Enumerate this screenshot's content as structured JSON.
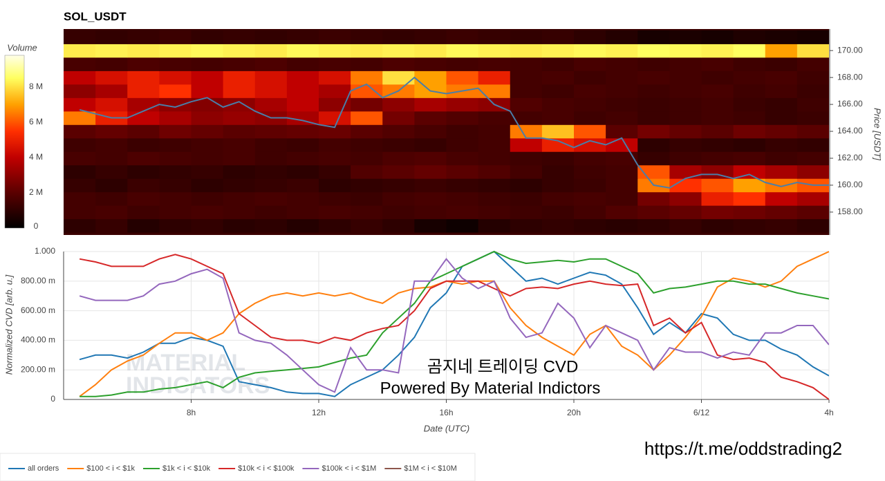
{
  "chart_data": [
    {
      "type": "heatmap",
      "title": "SOL_USDT",
      "colorbar": {
        "title": "Volume",
        "zlim": [
          0,
          9.8
        ],
        "ticks": [
          0,
          {
            "value": 2,
            "label": "2 M"
          },
          {
            "value": 4,
            "label": "4 M"
          },
          {
            "value": 6,
            "label": "6 M"
          },
          {
            "value": 8,
            "label": "8 M"
          }
        ]
      },
      "colorscale": [
        [
          0,
          "#000000"
        ],
        [
          2,
          "#5a0000"
        ],
        [
          4,
          "#c00000"
        ],
        [
          5.5,
          "#ff3000"
        ],
        [
          7,
          "#ffa000"
        ],
        [
          8.5,
          "#ffff60"
        ],
        [
          9.8,
          "#ffffe8"
        ]
      ],
      "time_bins": [
        4,
        5,
        6,
        7,
        8,
        9,
        10,
        11,
        12,
        13,
        14,
        15,
        16,
        17,
        18,
        19,
        20,
        21,
        22,
        23,
        24,
        25,
        26,
        27,
        28
      ],
      "price_bins": [
        156.5,
        157.5,
        158.5,
        159.5,
        160.5,
        161.5,
        162.5,
        163.5,
        164.5,
        165.5,
        166.5,
        167.5,
        168.5,
        169.5,
        170.5,
        171.5
      ],
      "z": [
        [
          1,
          1.2,
          0.8,
          1,
          1.1,
          0.9,
          1,
          0.8,
          1,
          1.2,
          1,
          0.5,
          0.3,
          0.8,
          1,
          1.1,
          1,
          0.9,
          1,
          1.2,
          1,
          1.1,
          1.2,
          1
        ],
        [
          1.5,
          1.6,
          1.4,
          1.5,
          1.6,
          1.5,
          1.4,
          1.5,
          1.6,
          1.5,
          1.4,
          1.5,
          1.6,
          1.5,
          1.4,
          1.3,
          1.5,
          1.8,
          2,
          2.2,
          2.5,
          2.4,
          2.2,
          2
        ],
        [
          1.5,
          1.4,
          1.6,
          1.5,
          1.4,
          1.5,
          1.6,
          1.5,
          1.4,
          1.3,
          1.5,
          1.6,
          1.5,
          1.4,
          1.3,
          1.5,
          1.6,
          1.5,
          2.5,
          3,
          5,
          5.5,
          4,
          3.5
        ],
        [
          1.2,
          1,
          1.3,
          1.2,
          1,
          1.1,
          1.2,
          1.3,
          1,
          1.1,
          1.2,
          1.3,
          1.2,
          1.1,
          1,
          1.2,
          1.3,
          1.5,
          6.5,
          5.5,
          6,
          7,
          6.5,
          6
        ],
        [
          1,
          1.2,
          1,
          1.1,
          1.2,
          1,
          1.1,
          1,
          1.2,
          1.8,
          2,
          2.2,
          2,
          1.8,
          1.5,
          1.2,
          1.4,
          1.5,
          6,
          3.5,
          3,
          4,
          3.5,
          3
        ],
        [
          1.6,
          1.5,
          1.7,
          1.6,
          1.5,
          1.6,
          1.4,
          1.5,
          1.6,
          1.5,
          1.7,
          1.8,
          1.6,
          1.5,
          1.4,
          1.3,
          1.5,
          1.6,
          1.2,
          1.4,
          1.5,
          1.6,
          1.4,
          1.5
        ],
        [
          1.4,
          1.5,
          1.3,
          1.4,
          1.5,
          1.6,
          1.4,
          1.3,
          1.5,
          1.4,
          1.3,
          1.2,
          1.4,
          1.5,
          4,
          5,
          4.5,
          4,
          1,
          1.2,
          1.1,
          1,
          1.2,
          1.1
        ],
        [
          2,
          2.2,
          2,
          2.4,
          2.2,
          2,
          2.1,
          2.2,
          2.3,
          2,
          1.8,
          1.6,
          1.4,
          1.5,
          6.5,
          7.5,
          6,
          2,
          2.5,
          2.2,
          2,
          2.4,
          2.2,
          2
        ],
        [
          6.5,
          5,
          4,
          3.5,
          3,
          3.2,
          3,
          3.5,
          4.5,
          6,
          2.5,
          2,
          1.8,
          1.6,
          1.5,
          1.6,
          1.4,
          1.5,
          1.3,
          1.4,
          1.5,
          1.4,
          1.2,
          1.3
        ],
        [
          4,
          4.5,
          3.5,
          3,
          2.8,
          3,
          3.5,
          4,
          3,
          2.5,
          3,
          3.5,
          3.2,
          3,
          1.8,
          1.6,
          1.5,
          1.4,
          1.3,
          1.4,
          1.5,
          1.3,
          1.2,
          1.4
        ],
        [
          3,
          3.5,
          5,
          5.5,
          4,
          5,
          4.5,
          4,
          3.5,
          6,
          6.5,
          7,
          6.5,
          6.5,
          1.5,
          1.4,
          1.6,
          1.5,
          1.4,
          1.5,
          1.6,
          1.4,
          1.5,
          1.3
        ],
        [
          4,
          4.5,
          5,
          4.5,
          4,
          5,
          4.5,
          4,
          4.5,
          6.5,
          8,
          7,
          6,
          5,
          1.5,
          1.6,
          1.4,
          1.5,
          1.6,
          1.5,
          1.4,
          1.5,
          1.6,
          1.4
        ],
        [
          1.6,
          1.5,
          1.7,
          1.6,
          1.5,
          1.6,
          1.7,
          1.5,
          1.6,
          1.5,
          1.7,
          1.6,
          1.5,
          1.6,
          1.5,
          1.4,
          1.6,
          1.5,
          1.4,
          1.5,
          1.6,
          1.4,
          1.3,
          1.5
        ],
        [
          8.2,
          8.3,
          8.2,
          8.3,
          8.4,
          8.3,
          8.2,
          8.4,
          8.3,
          8.2,
          8.3,
          8.2,
          8.4,
          8.3,
          8.2,
          8.3,
          8.4,
          8.3,
          8.5,
          8.4,
          8.3,
          8.5,
          7,
          8
        ],
        [
          1.2,
          1.1,
          1.2,
          1.3,
          1.1,
          1.2,
          1.1,
          1.2,
          1.3,
          1.2,
          1.1,
          1.2,
          1.3,
          1.2,
          1.1,
          1.2,
          1.0,
          0.8,
          0.5,
          0.6,
          0.5,
          0.7,
          0.6,
          0.5
        ]
      ],
      "x": [
        4.5,
        5,
        5.5,
        6,
        6.5,
        7,
        7.5,
        8,
        8.5,
        9,
        9.5,
        10,
        10.5,
        11,
        11.5,
        12,
        12.5,
        13,
        13.5,
        14,
        14.5,
        15,
        15.5,
        16,
        16.5,
        17,
        17.5,
        18,
        18.5,
        19,
        19.5,
        20,
        20.5,
        21,
        21.5,
        22,
        22.5,
        23,
        23.5,
        24,
        24.5,
        25,
        25.5,
        26,
        26.5,
        27,
        27.5,
        28
      ],
      "price": {
        "color": "#4a7ea8",
        "values": [
          165.6,
          165.3,
          165.0,
          165.0,
          165.5,
          166.0,
          165.8,
          166.2,
          166.5,
          165.8,
          166.2,
          165.5,
          165.0,
          165.0,
          164.8,
          164.5,
          164.3,
          167.0,
          167.5,
          166.5,
          167.0,
          168.0,
          167.0,
          166.8,
          167.0,
          167.2,
          166.0,
          165.5,
          163.5,
          163.5,
          163.3,
          162.8,
          163.3,
          163.0,
          163.5,
          161.5,
          160.0,
          159.8,
          160.5,
          160.8,
          160.8,
          160.5,
          160.8,
          160.2,
          159.9,
          160.2,
          160.0,
          160.0
        ]
      },
      "xlim": [
        4,
        28
      ],
      "ylim": [
        156.3,
        171.6
      ],
      "y_label": "Price [USDT]",
      "yticks": [
        {
          "value": 158,
          "label": "158.00"
        },
        {
          "value": 160,
          "label": "160.00"
        },
        {
          "value": 162,
          "label": "162.00"
        },
        {
          "value": 164,
          "label": "164.00"
        },
        {
          "value": 166,
          "label": "166.00"
        },
        {
          "value": 168,
          "label": "168.00"
        },
        {
          "value": 170,
          "label": "170.00"
        }
      ]
    },
    {
      "type": "line",
      "x": [
        4.5,
        5,
        5.5,
        6,
        6.5,
        7,
        7.5,
        8,
        8.5,
        9,
        9.5,
        10,
        10.5,
        11,
        11.5,
        12,
        12.5,
        13,
        13.5,
        14,
        14.5,
        15,
        15.5,
        16,
        16.5,
        17,
        17.5,
        18,
        18.5,
        19,
        19.5,
        20,
        20.5,
        21,
        21.5,
        22,
        22.5,
        23,
        23.5,
        24,
        24.5,
        25,
        25.5,
        26,
        26.5,
        27,
        27.5,
        28
      ],
      "xlim": [
        4,
        28
      ],
      "ylim": [
        0,
        1
      ],
      "xticks": [
        {
          "value": 8,
          "label": "8h"
        },
        {
          "value": 12,
          "label": "12h"
        },
        {
          "value": 16,
          "label": "16h"
        },
        {
          "value": 20,
          "label": "20h"
        },
        {
          "value": 24,
          "label": "6/12"
        },
        {
          "value": 28,
          "label": "4h"
        }
      ],
      "yticks": [
        0,
        {
          "value": 0.2,
          "label": "200.00 m"
        },
        {
          "value": 0.4,
          "label": "400.00 m"
        },
        {
          "value": 0.6,
          "label": "600.00 m"
        },
        {
          "value": 0.8,
          "label": "800.00 m"
        },
        {
          "value": 1,
          "label": "1.000"
        }
      ],
      "x_label": "Date (UTC)",
      "y_label": "Normalized CVD [arb. u.]",
      "grid": true,
      "series": [
        {
          "name": "all orders",
          "color": "#1f77b4",
          "values": [
            0.27,
            0.3,
            0.3,
            0.28,
            0.32,
            0.38,
            0.38,
            0.42,
            0.4,
            0.36,
            0.12,
            0.1,
            0.08,
            0.05,
            0.04,
            0.04,
            0.02,
            0.1,
            0.15,
            0.2,
            0.3,
            0.42,
            0.62,
            0.72,
            0.9,
            0.95,
            1.0,
            0.9,
            0.8,
            0.82,
            0.78,
            0.82,
            0.86,
            0.84,
            0.78,
            0.62,
            0.44,
            0.52,
            0.45,
            0.58,
            0.55,
            0.44,
            0.4,
            0.4,
            0.34,
            0.3,
            0.22,
            0.16
          ]
        },
        {
          "name": "$100 < i < $1k",
          "color": "#ff7f0e",
          "values": [
            0.02,
            0.1,
            0.2,
            0.26,
            0.3,
            0.38,
            0.45,
            0.45,
            0.4,
            0.45,
            0.58,
            0.65,
            0.7,
            0.72,
            0.7,
            0.72,
            0.7,
            0.72,
            0.68,
            0.65,
            0.72,
            0.75,
            0.76,
            0.8,
            0.78,
            0.8,
            0.8,
            0.62,
            0.5,
            0.42,
            0.36,
            0.3,
            0.44,
            0.5,
            0.36,
            0.3,
            0.2,
            0.3,
            0.42,
            0.56,
            0.76,
            0.82,
            0.8,
            0.76,
            0.8,
            0.9,
            0.95,
            1.0
          ]
        },
        {
          "name": "$1k < i < $10k",
          "color": "#2ca02c",
          "values": [
            0.02,
            0.02,
            0.03,
            0.05,
            0.05,
            0.07,
            0.08,
            0.1,
            0.12,
            0.08,
            0.15,
            0.18,
            0.19,
            0.2,
            0.21,
            0.22,
            0.25,
            0.28,
            0.3,
            0.45,
            0.55,
            0.65,
            0.8,
            0.85,
            0.9,
            0.95,
            1.0,
            0.95,
            0.92,
            0.93,
            0.94,
            0.93,
            0.95,
            0.95,
            0.9,
            0.85,
            0.72,
            0.75,
            0.76,
            0.78,
            0.8,
            0.8,
            0.78,
            0.78,
            0.75,
            0.72,
            0.7,
            0.68
          ]
        },
        {
          "name": "$10k < i < $100k",
          "color": "#d62728",
          "values": [
            0.95,
            0.93,
            0.9,
            0.9,
            0.9,
            0.95,
            0.98,
            0.95,
            0.9,
            0.85,
            0.58,
            0.5,
            0.42,
            0.4,
            0.4,
            0.38,
            0.42,
            0.4,
            0.45,
            0.48,
            0.5,
            0.6,
            0.75,
            0.8,
            0.8,
            0.8,
            0.75,
            0.7,
            0.75,
            0.76,
            0.75,
            0.78,
            0.8,
            0.78,
            0.77,
            0.78,
            0.5,
            0.55,
            0.45,
            0.52,
            0.3,
            0.27,
            0.28,
            0.25,
            0.15,
            0.12,
            0.08,
            0.0
          ]
        },
        {
          "name": "$100k < i < $1M",
          "color": "#9467bd",
          "values": [
            0.7,
            0.67,
            0.67,
            0.67,
            0.7,
            0.78,
            0.8,
            0.85,
            0.88,
            0.82,
            0.45,
            0.4,
            0.38,
            0.3,
            0.2,
            0.1,
            0.05,
            0.35,
            0.2,
            0.2,
            0.18,
            0.8,
            0.8,
            0.95,
            0.82,
            0.75,
            0.8,
            0.55,
            0.42,
            0.45,
            0.65,
            0.55,
            0.35,
            0.5,
            0.45,
            0.4,
            0.2,
            0.35,
            0.32,
            0.32,
            0.28,
            0.32,
            0.3,
            0.45,
            0.45,
            0.5,
            0.5,
            0.37
          ]
        },
        {
          "name": "$1M < i < $10M",
          "color": "#8c564b",
          "values": [
            null,
            null,
            null,
            null,
            null,
            null,
            null,
            null,
            null,
            null,
            null,
            null,
            null,
            null,
            null,
            null,
            null,
            null,
            null,
            null,
            null,
            null,
            null,
            null,
            null,
            null,
            null,
            null,
            null,
            null,
            null,
            null,
            null,
            null,
            null,
            null,
            null,
            null,
            null,
            null,
            null,
            null,
            null,
            null,
            null,
            null,
            null,
            null
          ]
        }
      ],
      "watermark": [
        "MATERIAL",
        "INDICATORS"
      ],
      "annotations": [
        "곰지네 트레이딩 CVD",
        "Powered By Material Indictors"
      ]
    }
  ],
  "footer_link": "https://t.me/oddstrading2"
}
